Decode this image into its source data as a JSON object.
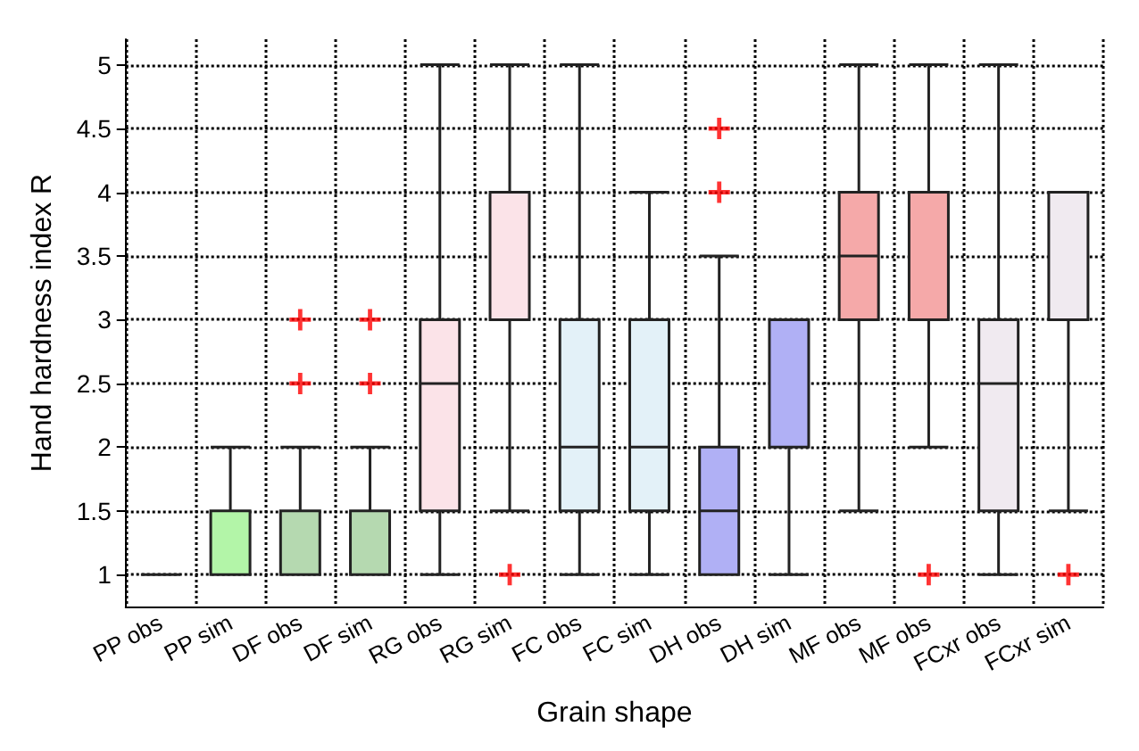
{
  "chart_data": {
    "type": "box",
    "xlabel": "Grain shape",
    "ylabel": "Hand hardness index R",
    "categories": [
      "PP obs",
      "PP sim",
      "DF obs",
      "DF sim",
      "RG obs",
      "RG sim",
      "FC obs",
      "FC sim",
      "DH obs",
      "DH sim",
      "MF obs",
      "MF obs",
      "FCxr obs",
      "FCxr sim"
    ],
    "colors": [
      "#222222",
      "#b3f5a8",
      "#b5d9b0",
      "#b5d9b0",
      "#fbe3e8",
      "#fbe3e8",
      "#e3f1f8",
      "#e3f1f8",
      "#b0b0f5",
      "#b0b0f5",
      "#f5a9a9",
      "#f5a9a9",
      "#f0eaf0",
      "#f0eaf0"
    ],
    "boxes": [
      {
        "low": 1,
        "q1": 1,
        "median": 1,
        "q3": 1,
        "high": 1
      },
      {
        "low": 1,
        "q1": 1,
        "median": 1,
        "q3": 1.5,
        "high": 2
      },
      {
        "low": 1,
        "q1": 1,
        "median": 1,
        "q3": 1.5,
        "high": 2,
        "outliers": [
          2.5,
          3
        ]
      },
      {
        "low": 1,
        "q1": 1,
        "median": 1,
        "q3": 1.5,
        "high": 2,
        "outliers": [
          2.5,
          3
        ]
      },
      {
        "low": 1,
        "q1": 1.5,
        "median": 2.5,
        "q3": 3,
        "high": 5
      },
      {
        "low": 1.5,
        "q1": 3,
        "median": 3,
        "q3": 4,
        "high": 5,
        "outliers": [
          1
        ]
      },
      {
        "low": 1,
        "q1": 1.5,
        "median": 2,
        "q3": 3,
        "high": 5
      },
      {
        "low": 1,
        "q1": 1.5,
        "median": 2,
        "q3": 3,
        "high": 4
      },
      {
        "low": 1,
        "q1": 1,
        "median": 1.5,
        "q3": 2,
        "high": 3.5,
        "outliers": [
          4,
          4.5
        ]
      },
      {
        "low": 1,
        "q1": 2,
        "median": 2,
        "q3": 3,
        "high": 3
      },
      {
        "low": 1.5,
        "q1": 3,
        "median": 3.5,
        "q3": 4,
        "high": 5
      },
      {
        "low": 2,
        "q1": 3,
        "median": 4,
        "q3": 4,
        "high": 5,
        "outliers": [
          1
        ]
      },
      {
        "low": 1,
        "q1": 1.5,
        "median": 2.5,
        "q3": 3,
        "high": 5
      },
      {
        "low": 1.5,
        "q1": 3,
        "median": 3,
        "q3": 4,
        "high": 4,
        "outliers": [
          1
        ]
      }
    ],
    "ylim": [
      0.75,
      5.2
    ],
    "yticks": [
      1,
      1.5,
      2,
      2.5,
      3,
      3.5,
      4,
      4.5,
      5
    ],
    "grid": true
  }
}
